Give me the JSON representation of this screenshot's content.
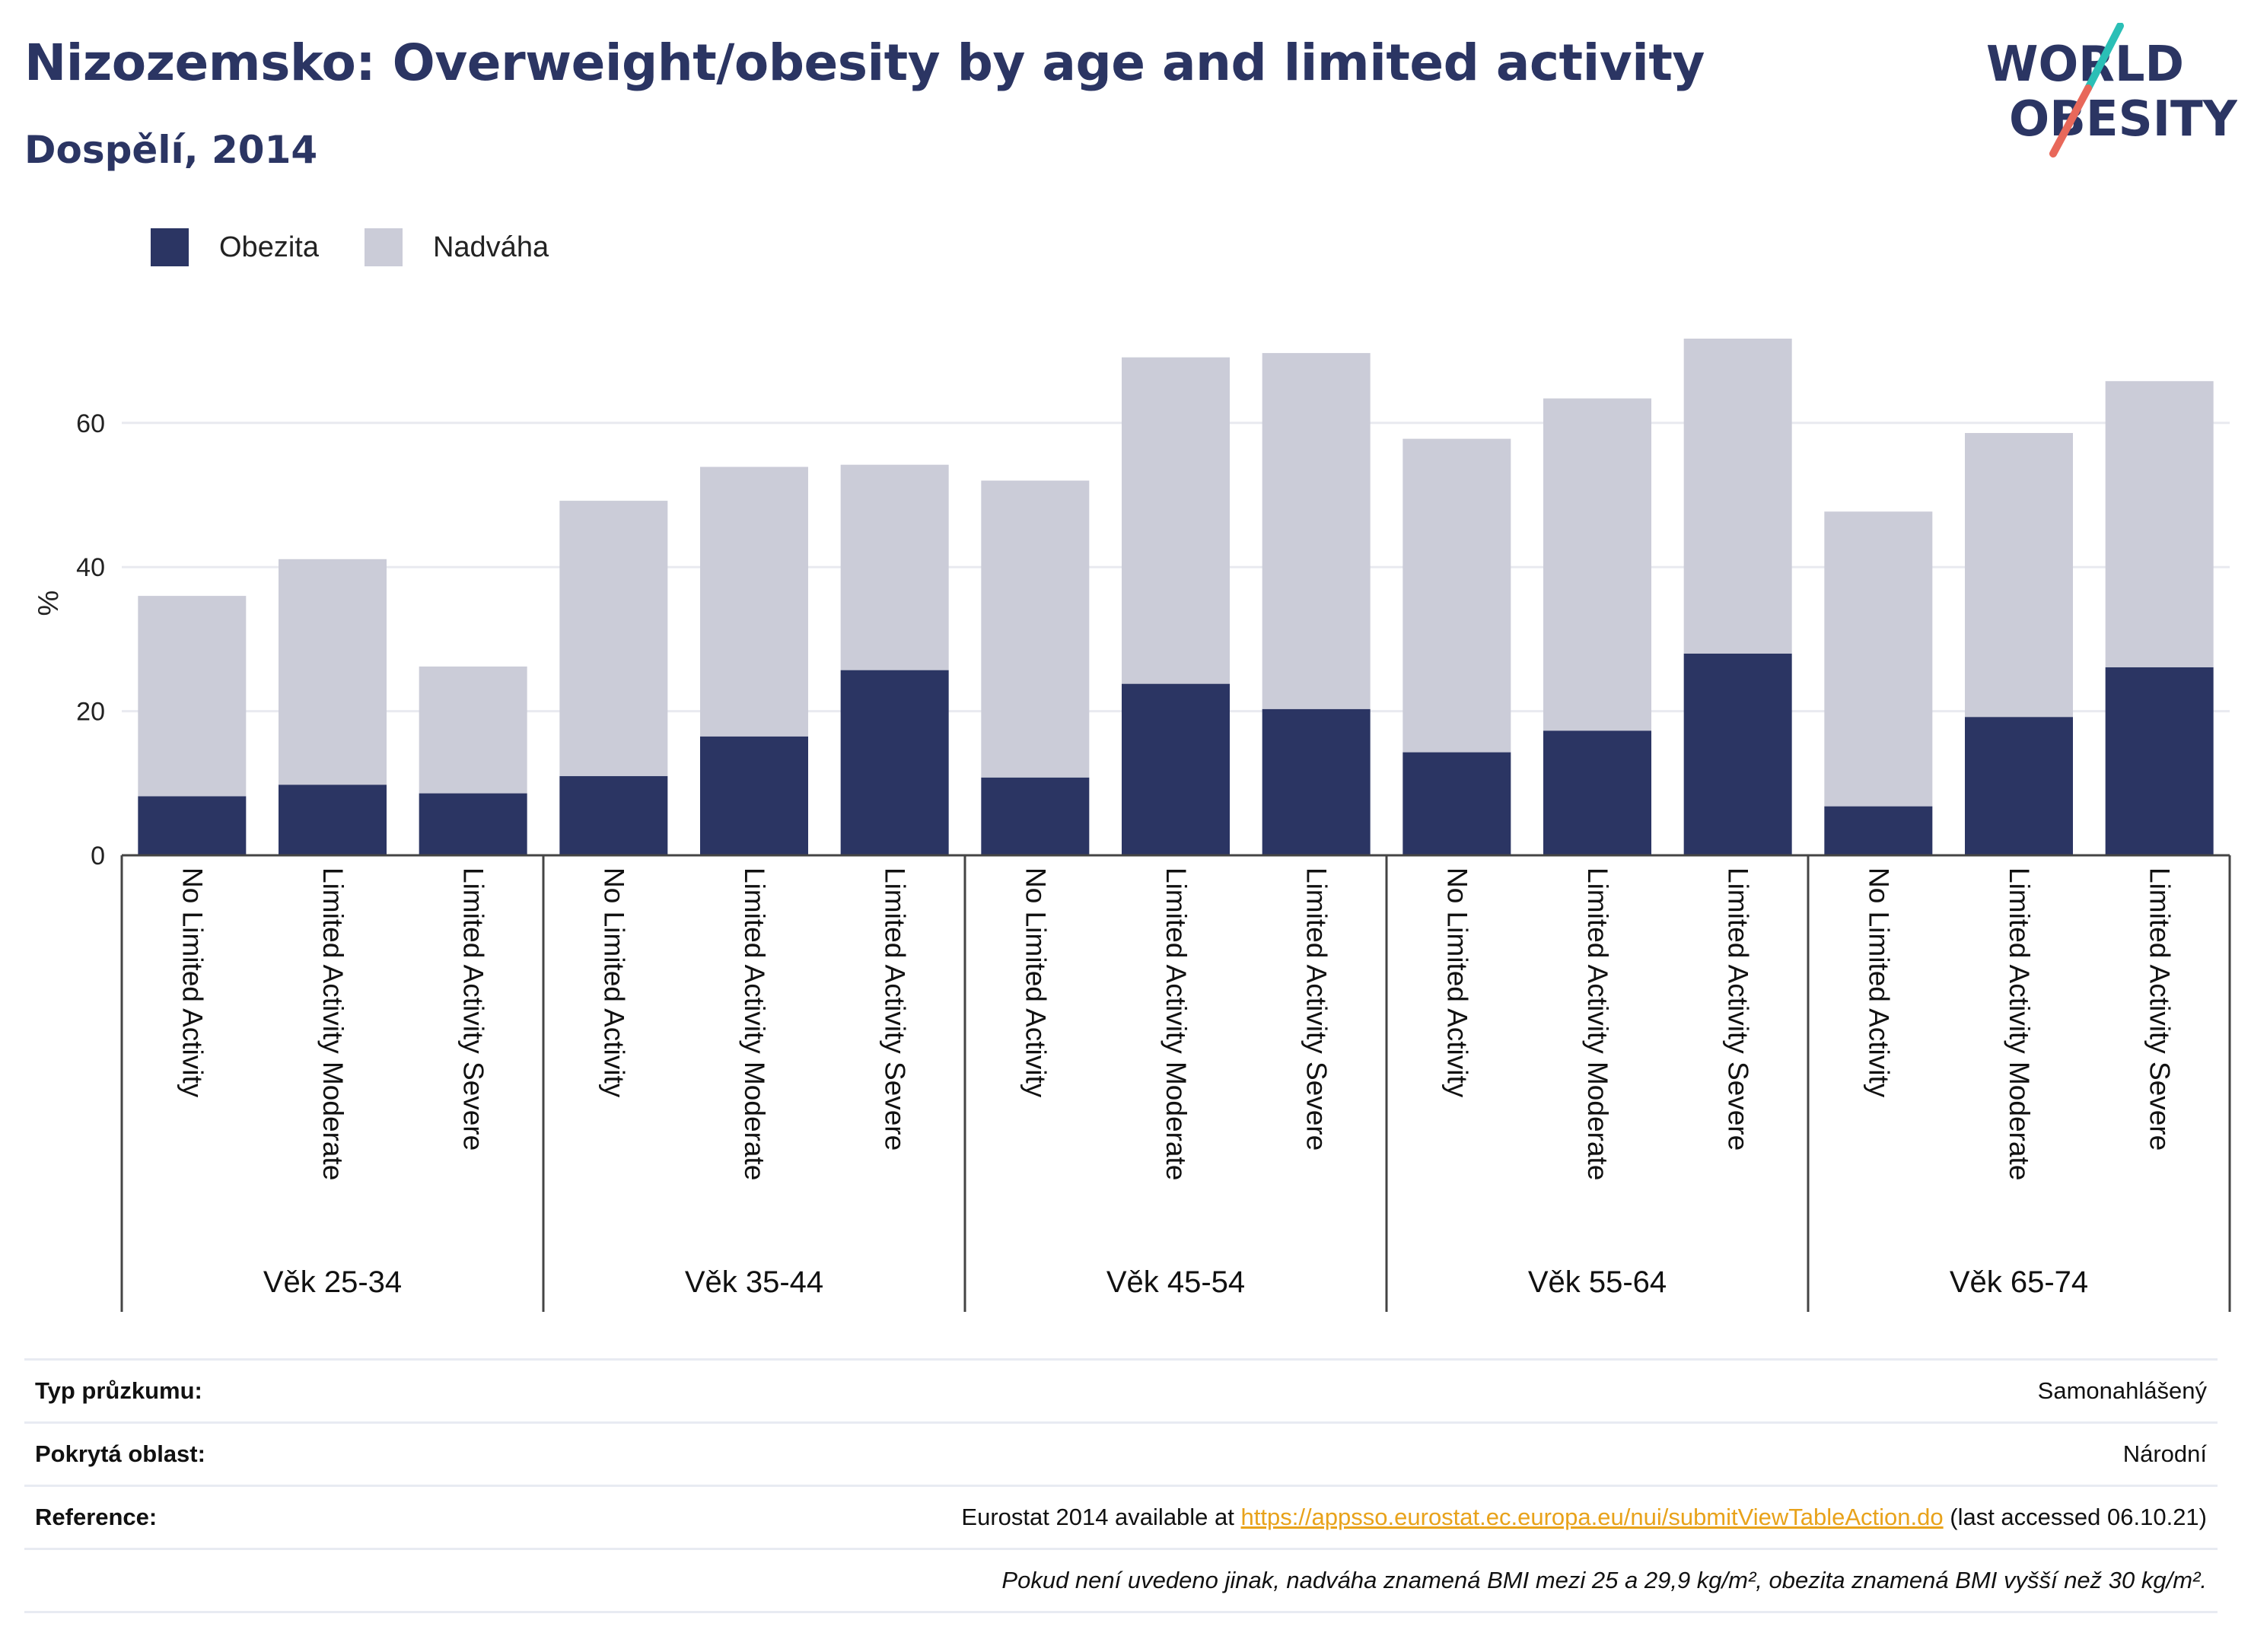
{
  "header": {
    "title": "Nizozemsko: Overweight/obesity by age and limited activity",
    "subtitle": "Dospělí, 2014"
  },
  "logo": {
    "line1": "WORLD",
    "line2": "OBESITY"
  },
  "legend": {
    "items": [
      {
        "label": "Obezita",
        "color": "#2b3563"
      },
      {
        "label": "Nadváha",
        "color": "#cbccd8"
      }
    ]
  },
  "chart_data": {
    "type": "bar",
    "stacked": true,
    "ylabel": "%",
    "ylim": [
      0,
      75
    ],
    "yticks": [
      0,
      20,
      40,
      60
    ],
    "grid": true,
    "legend_position": "top-left",
    "groups": [
      "Věk 25-34",
      "Věk 35-44",
      "Věk 45-54",
      "Věk 55-64",
      "Věk 65-74"
    ],
    "subcategories": [
      "No Limited Activity",
      "Limited Activity Moderate",
      "Limited Activity Severe"
    ],
    "series": [
      {
        "name": "Obezita",
        "color": "#2b3563",
        "values": [
          8.2,
          9.8,
          8.6,
          11.0,
          16.5,
          25.7,
          10.8,
          23.8,
          20.3,
          14.3,
          17.3,
          28.0,
          6.8,
          19.2,
          26.1
        ]
      },
      {
        "name": "Nadváha",
        "color": "#cbccd8",
        "values": [
          27.8,
          31.3,
          17.6,
          38.2,
          37.4,
          28.5,
          41.2,
          45.3,
          49.4,
          43.5,
          46.1,
          43.7,
          40.9,
          39.4,
          39.7
        ]
      }
    ]
  },
  "meta": {
    "rows": [
      {
        "label": "Typ průzkumu:",
        "value": "Samonahlášený"
      },
      {
        "label": "Pokrytá oblast:",
        "value": "Národní"
      },
      {
        "label": "Reference:",
        "value_prefix": "Eurostat 2014 available at ",
        "link": "https://appsso.eurostat.ec.europa.eu/nui/submitViewTableAction.do",
        "value_suffix": " (last accessed 06.10.21)"
      }
    ],
    "note": "Pokud není uvedeno jinak, nadváha znamená BMI mezi 25 a 29,9 kg/m², obezita znamená BMI vyšší než 30 kg/m²."
  }
}
